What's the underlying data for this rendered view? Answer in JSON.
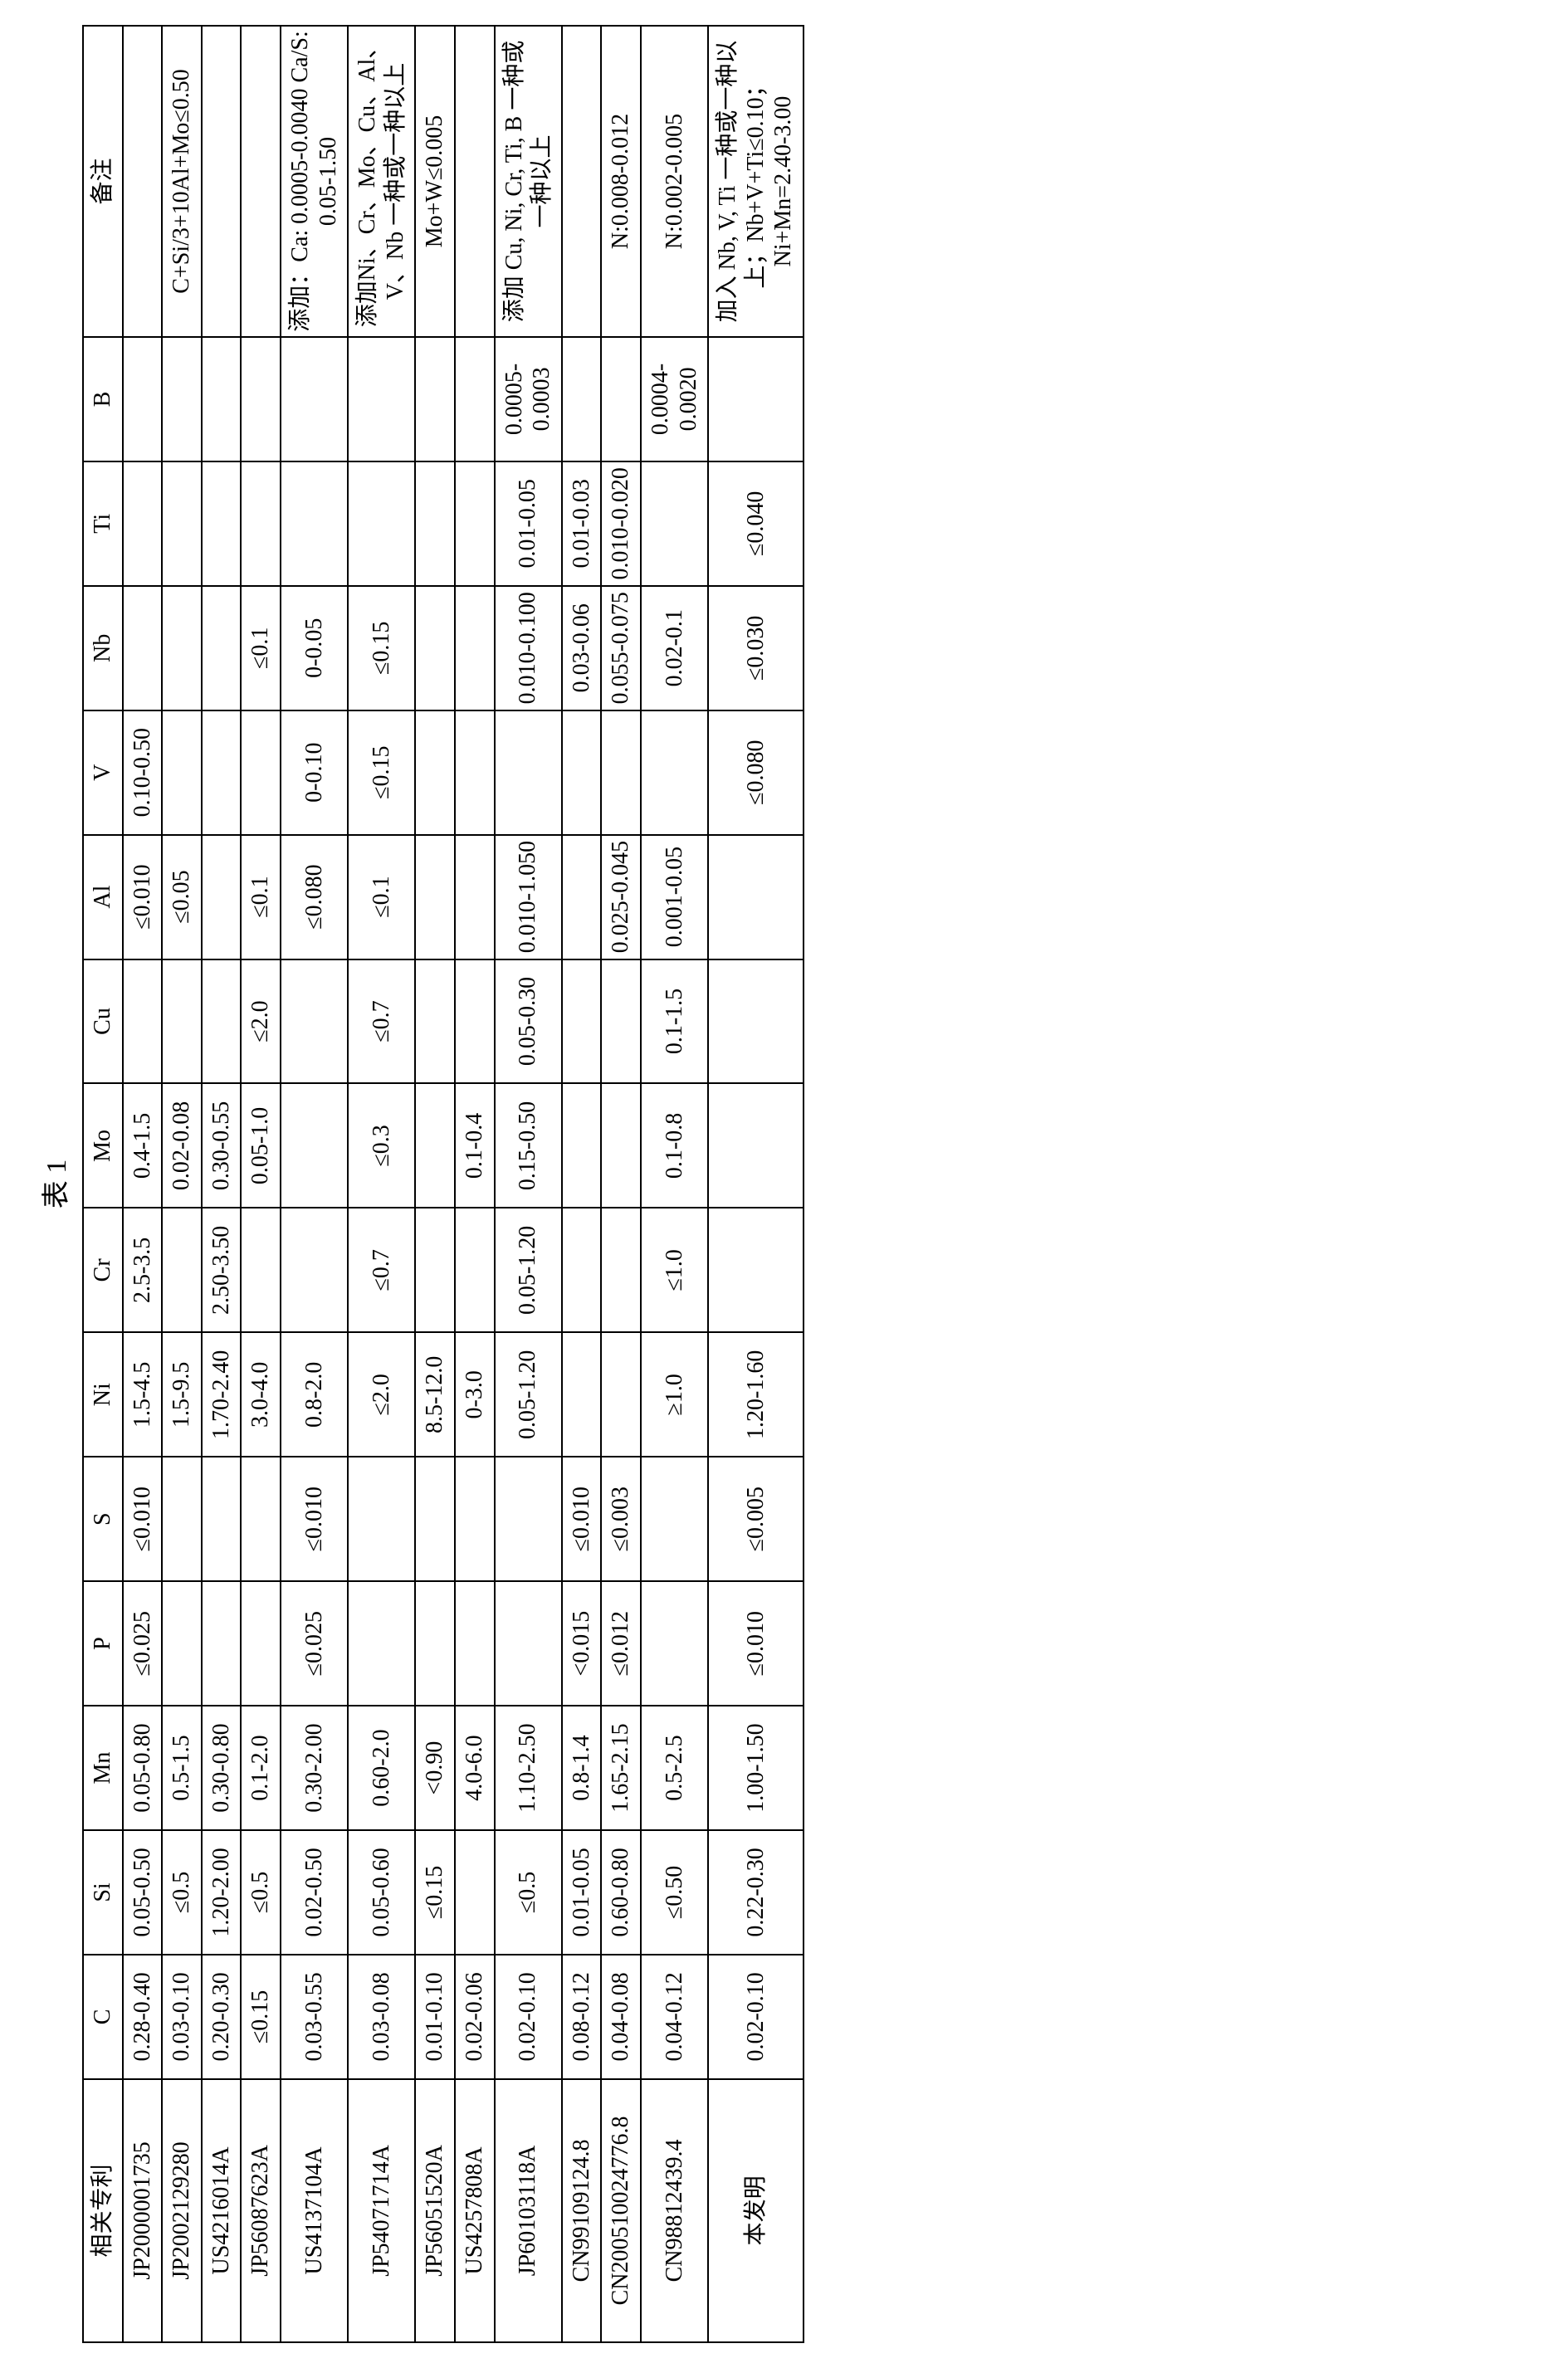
{
  "caption": "表 1",
  "headers": [
    "相关专利",
    "C",
    "Si",
    "Mn",
    "P",
    "S",
    "Ni",
    "Cr",
    "Mo",
    "Cu",
    "Al",
    "V",
    "Nb",
    "Ti",
    "B",
    "备注"
  ],
  "rows": [
    {
      "patent": "JP2000001735",
      "C": "0.28-0.40",
      "Si": "0.05-0.50",
      "Mn": "0.05-0.80",
      "P": "≤0.025",
      "S": "≤0.010",
      "Ni": "1.5-4.5",
      "Cr": "2.5-3.5",
      "Mo": "0.4-1.5",
      "Cu": "",
      "Al": "≤0.010",
      "V": "0.10-0.50",
      "Nb": "",
      "Ti": "",
      "B": "",
      "note": ""
    },
    {
      "patent": "JP2002129280",
      "C": "0.03-0.10",
      "Si": "≤0.5",
      "Mn": "0.5-1.5",
      "P": "",
      "S": "",
      "Ni": "1.5-9.5",
      "Cr": "",
      "Mo": "0.02-0.08",
      "Cu": "",
      "Al": "≤0.05",
      "V": "",
      "Nb": "",
      "Ti": "",
      "B": "",
      "note": "C+Si/3+10Al+Mo≤0.50"
    },
    {
      "patent": "US4216014A",
      "C": "0.20-0.30",
      "Si": "1.20-2.00",
      "Mn": "0.30-0.80",
      "P": "",
      "S": "",
      "Ni": "1.70-2.40",
      "Cr": "2.50-3.50",
      "Mo": "0.30-0.55",
      "Cu": "",
      "Al": "",
      "V": "",
      "Nb": "",
      "Ti": "",
      "B": "",
      "note": ""
    },
    {
      "patent": "JP56087623A",
      "C": "≤0.15",
      "Si": "≤0.5",
      "Mn": "0.1-2.0",
      "P": "",
      "S": "",
      "Ni": "3.0-4.0",
      "Cr": "",
      "Mo": "0.05-1.0",
      "Cu": "≤2.0",
      "Al": "≤0.1",
      "V": "",
      "Nb": "≤0.1",
      "Ti": "",
      "B": "",
      "note": ""
    },
    {
      "patent": "US4137104A",
      "C": "0.03-0.55",
      "Si": "0.02-0.50",
      "Mn": "0.30-2.00",
      "P": "≤0.025",
      "S": "≤0.010",
      "Ni": "0.8-2.0",
      "Cr": "",
      "Mo": "",
      "Cu": "",
      "Al": "≤0.080",
      "V": "0-0.10",
      "Nb": "0-0.05",
      "Ti": "",
      "B": "",
      "note": "添加：Ca: 0.0005-0.0040 Ca/S: 0.05-1.50"
    },
    {
      "patent": "JP54071714A",
      "C": "0.03-0.08",
      "Si": "0.05-0.60",
      "Mn": "0.60-2.0",
      "P": "",
      "S": "",
      "Ni": "≤2.0",
      "Cr": "≤0.7",
      "Mo": "≤0.3",
      "Cu": "≤0.7",
      "Al": "≤0.1",
      "V": "≤0.15",
      "Nb": "≤0.15",
      "Ti": "",
      "B": "",
      "note": "添加Ni、Cr、Mo、Cu、Al、V、Nb 一种或一种以上"
    },
    {
      "patent": "JP56051520A",
      "C": "0.01-0.10",
      "Si": "≤0.15",
      "Mn": "<0.90",
      "P": "",
      "S": "",
      "Ni": "8.5-12.0",
      "Cr": "",
      "Mo": "",
      "Cu": "",
      "Al": "",
      "V": "",
      "Nb": "",
      "Ti": "",
      "B": "",
      "note": "Mo+W≤0.005"
    },
    {
      "patent": "US4257808A",
      "C": "0.02-0.06",
      "Si": "",
      "Mn": "4.0-6.0",
      "P": "",
      "S": "",
      "Ni": "0-3.0",
      "Cr": "",
      "Mo": "0.1-0.4",
      "Cu": "",
      "Al": "",
      "V": "",
      "Nb": "",
      "Ti": "",
      "B": "",
      "note": ""
    },
    {
      "patent": "JP60103118A",
      "C": "0.02-0.10",
      "Si": "≤0.5",
      "Mn": "1.10-2.50",
      "P": "",
      "S": "",
      "Ni": "0.05-1.20",
      "Cr": "0.05-1.20",
      "Mo": "0.15-0.50",
      "Cu": "0.05-0.30",
      "Al": "0.010-1.050",
      "V": "",
      "Nb": "0.010-0.100",
      "Ti": "0.01-0.05",
      "B": "0.0005-0.0003",
      "note": "添加 Cu, Ni, Cr, Ti, B 一种或一种以上"
    },
    {
      "patent": "CN99109124.8",
      "C": "0.08-0.12",
      "Si": "0.01-0.05",
      "Mn": "0.8-1.4",
      "P": "<0.015",
      "S": "≤0.010",
      "Ni": "",
      "Cr": "",
      "Mo": "",
      "Cu": "",
      "Al": "",
      "V": "",
      "Nb": "0.03-0.06",
      "Ti": "0.01-0.03",
      "B": "",
      "note": ""
    },
    {
      "patent": "CN200510024776.8",
      "C": "0.04-0.08",
      "Si": "0.60-0.80",
      "Mn": "1.65-2.15",
      "P": "≤0.012",
      "S": "≤0.003",
      "Ni": "",
      "Cr": "",
      "Mo": "",
      "Cu": "",
      "Al": "0.025-0.045",
      "V": "",
      "Nb": "0.055-0.075",
      "Ti": "0.010-0.020",
      "B": "",
      "note": "N:0.008-0.012"
    },
    {
      "patent": "CN98812439.4",
      "C": "0.04-0.12",
      "Si": "≤0.50",
      "Mn": "0.5-2.5",
      "P": "",
      "S": "",
      "Ni": "≥1.0",
      "Cr": "≤1.0",
      "Mo": "0.1-0.8",
      "Cu": "0.1-1.5",
      "Al": "0.001-0.05",
      "V": "",
      "Nb": "0.02-0.1",
      "Ti": "",
      "B": "0.0004-0.0020",
      "note": "N:0.002-0.005"
    },
    {
      "patent": "本发明",
      "C": "0.02-0.10",
      "Si": "0.22-0.30",
      "Mn": "1.00-1.50",
      "P": "≤0.010",
      "S": "≤0.005",
      "Ni": "1.20-1.60",
      "Cr": "",
      "Mo": "",
      "Cu": "",
      "Al": "",
      "V": "≤0.080",
      "Nb": "≤0.030",
      "Ti": "≤0.040",
      "B": "",
      "note": "加入 Nb, V, Ti 一种或一种以上；Nb+V+Ti≤0.10；Ni+Mn=2.40-3.00"
    }
  ],
  "style": {
    "background": "#ffffff",
    "border_color": "#000000",
    "font_size": 28,
    "caption_font_size": 34
  }
}
